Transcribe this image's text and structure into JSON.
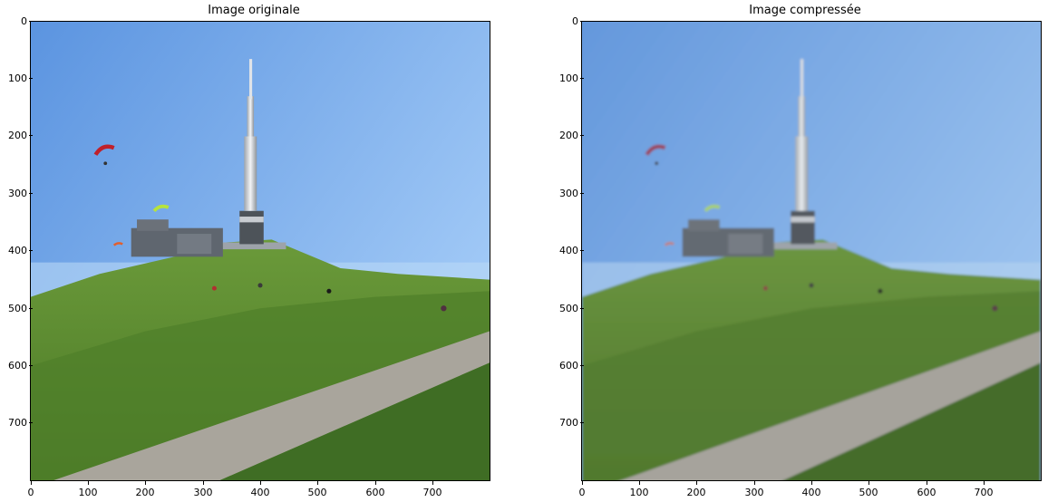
{
  "figure": {
    "panels": [
      {
        "title": "Image originale",
        "image_desc": "sharp photo: puy-de-dôme summit with TV antenna tower, green grassy hill, paved path, paragliders",
        "blur": 0,
        "x_ticks": [
          "0",
          "100",
          "200",
          "300",
          "400",
          "500",
          "600",
          "700"
        ],
        "y_ticks": [
          "0",
          "100",
          "200",
          "300",
          "400",
          "500",
          "600",
          "700"
        ]
      },
      {
        "title": "Image compressée",
        "image_desc": "same photo compressed: softer detail, slightly washed-out colors",
        "blur": 1.2,
        "x_ticks": [
          "0",
          "100",
          "200",
          "300",
          "400",
          "500",
          "600",
          "700"
        ],
        "y_ticks": [
          "0",
          "100",
          "200",
          "300",
          "400",
          "500",
          "600",
          "700"
        ]
      }
    ],
    "image_extent": {
      "width": 800,
      "height": 800
    },
    "colors": {
      "sky_top": "#5b94e0",
      "sky_bottom": "#9cc6f6",
      "grass": "#5a8a32",
      "grass_dark": "#3e6b22",
      "path": "#a9a59c",
      "building": "#5f666f",
      "tower": "#d9dde2"
    }
  }
}
